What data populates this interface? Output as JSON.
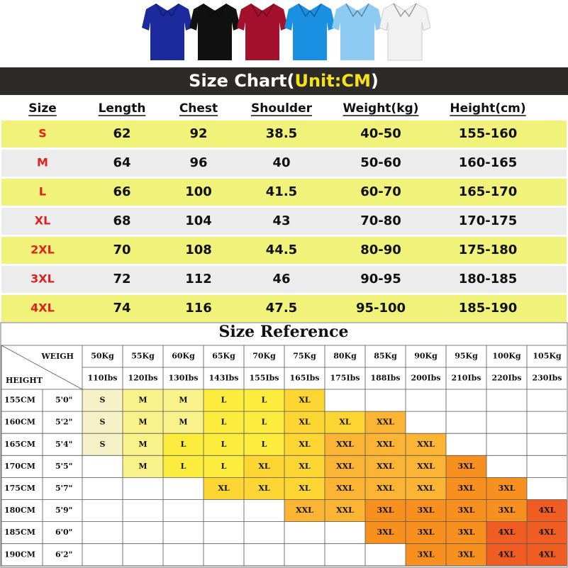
{
  "shirt_colors": [
    "#1c2a9e",
    "#111111",
    "#a3112c",
    "#1b8fe2",
    "#8ecbf2",
    "#f1f1f1"
  ],
  "size_chart": {
    "title": {
      "before": "Size Chart(",
      "unit": "Unit:CM",
      "after": ")"
    },
    "headers": [
      "Size",
      "Length",
      "Chest",
      "Shoulder",
      "Weight(kg)",
      "Height(cm)"
    ],
    "rows": [
      [
        "S",
        "62",
        "92",
        "38.5",
        "40-50",
        "155-160"
      ],
      [
        "M",
        "64",
        "96",
        "40",
        "50-60",
        "160-165"
      ],
      [
        "L",
        "66",
        "100",
        "41.5",
        "60-70",
        "165-170"
      ],
      [
        "XL",
        "68",
        "104",
        "43",
        "70-80",
        "170-175"
      ],
      [
        "2XL",
        "70",
        "108",
        "44.5",
        "80-90",
        "175-180"
      ],
      [
        "3XL",
        "72",
        "112",
        "46",
        "90-95",
        "180-185"
      ],
      [
        "4XL",
        "74",
        "116",
        "47.5",
        "95-100",
        "185-190"
      ]
    ]
  },
  "size_reference": {
    "title": "Size Reference",
    "weigh_label": "WEIGH",
    "height_label": "HEIGHT",
    "weights_kg": [
      "50Kg",
      "55Kg",
      "60Kg",
      "65Kg",
      "70Kg",
      "75Kg",
      "80Kg",
      "85Kg",
      "90Kg",
      "95Kg",
      "100Kg",
      "105Kg"
    ],
    "weights_lbs": [
      "110Ibs",
      "120Ibs",
      "130Ibs",
      "143Ibs",
      "155Ibs",
      "165Ibs",
      "175Ibs",
      "188Ibs",
      "200Ibs",
      "210Ibs",
      "220Ibs",
      "230Ibs"
    ],
    "heights_cm": [
      "155CM",
      "160CM",
      "165CM",
      "170CM",
      "175CM",
      "180CM",
      "185CM",
      "190CM"
    ],
    "heights_ft": [
      "5'0\"",
      "5'2\"",
      "5'4\"",
      "5'5\"",
      "5'7\"",
      "5'9\"",
      "6'0\"",
      "6'2\""
    ],
    "cells": [
      [
        "S",
        "M",
        "M",
        "L",
        "L",
        "XL",
        null,
        null,
        null,
        null,
        null,
        null
      ],
      [
        "S",
        "M",
        "M",
        "L",
        "L",
        "XL",
        "XL",
        "XXL",
        null,
        null,
        null,
        null
      ],
      [
        "S",
        "M",
        "L",
        "L",
        "L",
        "XL",
        "XXL",
        "XXL",
        "XXL",
        null,
        null,
        null
      ],
      [
        null,
        "M",
        "L",
        "L",
        "XL",
        "XL",
        "XXL",
        "XXL",
        "XXL",
        "3XL",
        null,
        null
      ],
      [
        null,
        null,
        null,
        "XL",
        "XL",
        "XL",
        "XXL",
        "XXL",
        "XXL",
        "3XL",
        "3XL",
        null
      ],
      [
        null,
        null,
        null,
        null,
        null,
        "XXL",
        "XXL",
        "3XL",
        "3XL",
        "3XL",
        "3XL",
        "4XL"
      ],
      [
        null,
        null,
        null,
        null,
        null,
        null,
        null,
        "3XL",
        "3XL",
        "3XL",
        "4XL",
        "4XL"
      ],
      [
        null,
        null,
        null,
        null,
        null,
        null,
        null,
        null,
        "3XL",
        "3XL",
        "4XL",
        "4XL"
      ]
    ],
    "size_colors": {
      "S": "#f6f1c6",
      "M": "#f9f28a",
      "L": "#fcec3e",
      "XL": "#fdd633",
      "XXL": "#fbb433",
      "3XL": "#f7901f",
      "4XL": "#f05d22"
    }
  }
}
